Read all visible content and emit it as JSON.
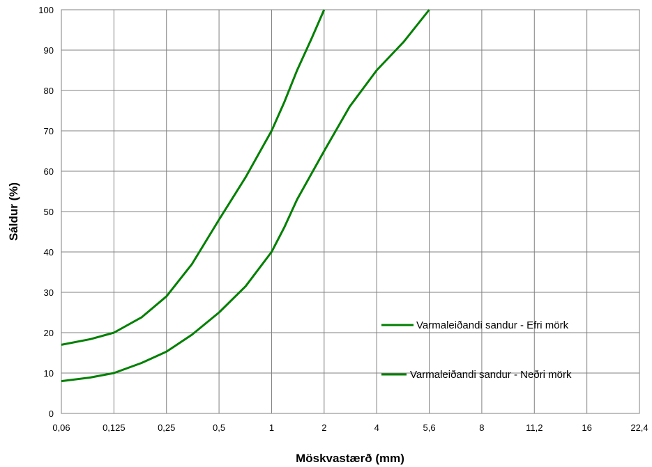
{
  "chart_data": {
    "type": "line",
    "title": "",
    "xlabel": "Möskvastærð (mm)",
    "ylabel": "Sáldur (%)",
    "x_tick_labels": [
      "0,06",
      "0,125",
      "0,25",
      "0,5",
      "1",
      "2",
      "4",
      "5,6",
      "8",
      "11,2",
      "16",
      "22,4"
    ],
    "y_tick_labels": [
      "0",
      "10",
      "20",
      "30",
      "40",
      "50",
      "60",
      "70",
      "80",
      "90",
      "100"
    ],
    "ylim": [
      0,
      100
    ],
    "y_ticks": [
      0,
      10,
      20,
      30,
      40,
      50,
      60,
      70,
      80,
      90,
      100
    ],
    "x_scale": "categorical sieve sizes (log-like spacing)",
    "grid": true,
    "legend_placement": "lower-right",
    "series": [
      {
        "name": "Varmaleiðandi sandur - Efri mörk",
        "color": "#008000",
        "points": [
          {
            "x": "0,06",
            "y": 17.0
          },
          {
            "x": "0,09",
            "y": 18.4
          },
          {
            "x": "0,125",
            "y": 20.0
          },
          {
            "x": "0,18",
            "y": 23.8
          },
          {
            "x": "0,25",
            "y": 29.0
          },
          {
            "x": "0,35",
            "y": 37.0
          },
          {
            "x": "0,5",
            "y": 48.0
          },
          {
            "x": "0,71",
            "y": 58.5
          },
          {
            "x": "1",
            "y": 70.0
          },
          {
            "x": "1,18",
            "y": 77.0
          },
          {
            "x": "1,4",
            "y": 85.0
          },
          {
            "x": "1,7",
            "y": 93.0
          },
          {
            "x": "2",
            "y": 100.0
          }
        ]
      },
      {
        "name": "Varmaleiðandi sandur - Neðri mörk",
        "color": "#008000",
        "points": [
          {
            "x": "0,06",
            "y": 8.0
          },
          {
            "x": "0,09",
            "y": 8.9
          },
          {
            "x": "0,125",
            "y": 10.0
          },
          {
            "x": "0,18",
            "y": 12.5
          },
          {
            "x": "0,25",
            "y": 15.3
          },
          {
            "x": "0,35",
            "y": 19.5
          },
          {
            "x": "0,5",
            "y": 25.0
          },
          {
            "x": "0,71",
            "y": 31.5
          },
          {
            "x": "1",
            "y": 40.0
          },
          {
            "x": "1,18",
            "y": 46.0
          },
          {
            "x": "1,4",
            "y": 53.0
          },
          {
            "x": "2",
            "y": 65.0
          },
          {
            "x": "2,8",
            "y": 76.0
          },
          {
            "x": "4",
            "y": 85.0
          },
          {
            "x": "4,75",
            "y": 92.0
          },
          {
            "x": "5,6",
            "y": 100.0
          }
        ]
      }
    ]
  }
}
